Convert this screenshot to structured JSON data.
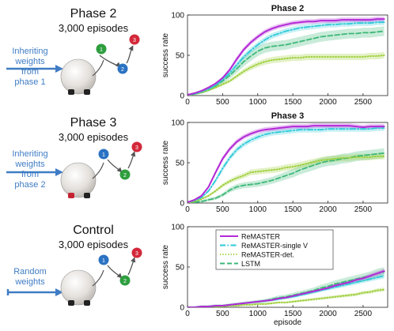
{
  "rows": [
    {
      "heading": "Phase 2",
      "episodes": "3,000 episodes",
      "inherit_lines": [
        "Inheriting",
        "weights",
        "from",
        "phase 1"
      ],
      "node_labels": [
        "1",
        "2",
        "3"
      ]
    },
    {
      "heading": "Phase 3",
      "episodes": "3,000 episodes",
      "inherit_lines": [
        "Inheriting",
        "weights",
        "from",
        "phase 2"
      ],
      "node_labels": [
        "1",
        "2",
        "3"
      ]
    },
    {
      "heading": "Control",
      "episodes": "3,000 episodes",
      "inherit_lines": [
        "Random",
        "weights"
      ],
      "node_labels": [
        "1",
        "2",
        "3"
      ]
    }
  ],
  "colors": {
    "remaster": "#b22ad6",
    "single_v": "#2ec9d8",
    "det": "#9acd32",
    "lstm": "#3cb878",
    "blue": "#3f7cc4",
    "node_green": "#2e9e3e",
    "node_blue": "#2a72c2",
    "node_red": "#d3283a"
  },
  "chart_data": [
    {
      "type": "line",
      "title": "Phase 2",
      "xlabel": "",
      "ylabel": "success rate",
      "xlim": [
        0,
        2850
      ],
      "ylim": [
        0,
        100
      ],
      "xticks": [
        0,
        500,
        1000,
        1500,
        2000,
        2500
      ],
      "yticks": [
        0,
        50,
        100
      ],
      "x": [
        0,
        100,
        200,
        300,
        400,
        500,
        600,
        700,
        800,
        900,
        1000,
        1100,
        1200,
        1300,
        1400,
        1500,
        1600,
        1700,
        1800,
        1900,
        2000,
        2100,
        2200,
        2300,
        2400,
        2500,
        2600,
        2700,
        2800
      ],
      "series": [
        {
          "name": "ReMASTER",
          "style": "solid",
          "values": [
            1,
            3,
            6,
            10,
            15,
            22,
            32,
            45,
            57,
            66,
            73,
            79,
            83,
            86,
            88,
            90,
            91,
            92,
            92,
            93,
            93,
            93,
            94,
            94,
            94,
            94,
            94,
            95,
            95
          ]
        },
        {
          "name": "ReMASTER-single V",
          "style": "dashdot",
          "values": [
            1,
            2,
            5,
            8,
            13,
            20,
            28,
            38,
            48,
            56,
            63,
            69,
            74,
            77,
            80,
            82,
            84,
            85,
            86,
            87,
            88,
            88,
            89,
            89,
            90,
            90,
            90,
            91,
            91
          ]
        },
        {
          "name": "ReMASTER-det.",
          "style": "dotted",
          "values": [
            0,
            2,
            4,
            7,
            10,
            14,
            18,
            24,
            30,
            35,
            39,
            42,
            44,
            45,
            46,
            47,
            47,
            48,
            48,
            48,
            48,
            48,
            48,
            48,
            48,
            48,
            49,
            49,
            50
          ]
        },
        {
          "name": "LSTM",
          "style": "dashed",
          "values": [
            0,
            2,
            4,
            7,
            12,
            18,
            25,
            33,
            42,
            49,
            55,
            59,
            61,
            62,
            63,
            65,
            67,
            69,
            71,
            73,
            74,
            75,
            76,
            77,
            77,
            78,
            78,
            79,
            80
          ]
        }
      ]
    },
    {
      "type": "line",
      "title": "Phase 3",
      "xlabel": "",
      "ylabel": "success rate",
      "xlim": [
        0,
        2850
      ],
      "ylim": [
        0,
        100
      ],
      "xticks": [
        0,
        500,
        1000,
        1500,
        2000,
        2500
      ],
      "yticks": [
        0,
        50,
        100
      ],
      "x": [
        0,
        100,
        200,
        300,
        400,
        500,
        600,
        700,
        800,
        900,
        1000,
        1100,
        1200,
        1300,
        1400,
        1500,
        1600,
        1700,
        1800,
        1900,
        2000,
        2100,
        2200,
        2300,
        2400,
        2500,
        2600,
        2700,
        2800
      ],
      "series": [
        {
          "name": "ReMASTER",
          "style": "solid",
          "values": [
            1,
            4,
            9,
            20,
            38,
            55,
            67,
            76,
            82,
            86,
            89,
            91,
            92,
            93,
            94,
            95,
            95,
            95,
            96,
            96,
            96,
            96,
            96,
            96,
            95,
            94,
            95,
            95,
            95
          ]
        },
        {
          "name": "ReMASTER-single V",
          "style": "dashdot",
          "values": [
            1,
            3,
            7,
            15,
            28,
            43,
            56,
            66,
            73,
            78,
            82,
            85,
            87,
            88,
            89,
            90,
            91,
            91,
            91,
            91,
            92,
            92,
            92,
            92,
            92,
            92,
            92,
            93,
            93
          ]
        },
        {
          "name": "ReMASTER-det.",
          "style": "dotted",
          "values": [
            0,
            2,
            5,
            9,
            15,
            22,
            27,
            31,
            34,
            38,
            39,
            40,
            41,
            42,
            44,
            45,
            47,
            49,
            51,
            53,
            54,
            55,
            56,
            56,
            57,
            57,
            57,
            58,
            58
          ]
        },
        {
          "name": "LSTM",
          "style": "dashed",
          "values": [
            0,
            1,
            2,
            4,
            6,
            10,
            16,
            20,
            22,
            23,
            24,
            26,
            28,
            31,
            34,
            37,
            41,
            44,
            47,
            50,
            52,
            53,
            55,
            56,
            58,
            59,
            60,
            61,
            62
          ]
        }
      ]
    },
    {
      "type": "line",
      "title": "",
      "xlabel": "episode",
      "ylabel": "success rate",
      "xlim": [
        0,
        2850
      ],
      "ylim": [
        0,
        100
      ],
      "xticks": [
        0,
        500,
        1000,
        1500,
        2000,
        2500
      ],
      "yticks": [
        0,
        50,
        100
      ],
      "legend": "top-center",
      "x": [
        0,
        100,
        200,
        300,
        400,
        500,
        600,
        700,
        800,
        900,
        1000,
        1100,
        1200,
        1300,
        1400,
        1500,
        1600,
        1700,
        1800,
        1900,
        2000,
        2100,
        2200,
        2300,
        2400,
        2500,
        2600,
        2700,
        2800
      ],
      "series": [
        {
          "name": "ReMASTER",
          "style": "solid",
          "values": [
            0,
            0,
            1,
            1,
            2,
            2,
            3,
            4,
            5,
            6,
            7,
            8,
            9,
            11,
            12,
            14,
            16,
            18,
            20,
            22,
            24,
            27,
            29,
            31,
            34,
            36,
            39,
            42,
            45
          ]
        },
        {
          "name": "ReMASTER-single V",
          "style": "dashdot",
          "values": [
            0,
            0,
            1,
            1,
            2,
            2,
            3,
            4,
            5,
            6,
            7,
            8,
            9,
            10,
            12,
            13,
            15,
            17,
            19,
            21,
            23,
            25,
            27,
            29,
            31,
            33,
            35,
            37,
            39
          ]
        },
        {
          "name": "ReMASTER-det.",
          "style": "dotted",
          "values": [
            0,
            0,
            0,
            1,
            1,
            1,
            2,
            2,
            3,
            3,
            4,
            4,
            5,
            6,
            6,
            7,
            8,
            9,
            10,
            11,
            12,
            13,
            14,
            15,
            16,
            18,
            19,
            21,
            22
          ]
        },
        {
          "name": "LSTM",
          "style": "dashed",
          "values": [
            0,
            0,
            1,
            1,
            2,
            2,
            3,
            4,
            5,
            6,
            7,
            8,
            10,
            12,
            13,
            15,
            17,
            19,
            21,
            24,
            26,
            29,
            31,
            33,
            35,
            37,
            39,
            42,
            44
          ]
        }
      ]
    }
  ]
}
